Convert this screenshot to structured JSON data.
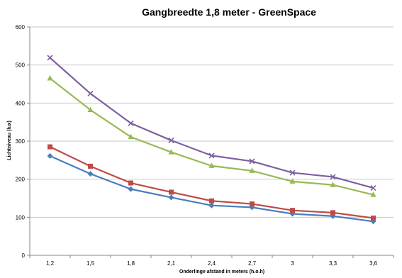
{
  "chart_data": {
    "type": "line",
    "title": "Gangbreedte 1,8 meter - GreenSpace",
    "xlabel": "Onderlinge afstand in meters (h.o.h)",
    "ylabel": "Lichtniveau (lux)",
    "categories": [
      "1,2",
      "1,5",
      "1,8",
      "2,1",
      "2,4",
      "2,7",
      "3",
      "3,3",
      "3,6"
    ],
    "ylim": [
      0,
      600
    ],
    "yticks": [
      0,
      100,
      200,
      300,
      400,
      500,
      600
    ],
    "grid": true,
    "series": [
      {
        "color": "#4a7ebb",
        "marker": "diamond",
        "values": [
          261,
          214,
          174,
          152,
          131,
          126,
          109,
          103,
          89
        ]
      },
      {
        "color": "#be4b48",
        "marker": "square",
        "values": [
          285,
          234,
          190,
          166,
          143,
          135,
          118,
          112,
          98
        ]
      },
      {
        "color": "#98b954",
        "marker": "triangle",
        "values": [
          465,
          382,
          311,
          271,
          235,
          222,
          194,
          185,
          159
        ]
      },
      {
        "color": "#7d60a0",
        "marker": "x",
        "values": [
          519,
          425,
          347,
          302,
          262,
          247,
          217,
          206,
          177
        ]
      }
    ]
  }
}
